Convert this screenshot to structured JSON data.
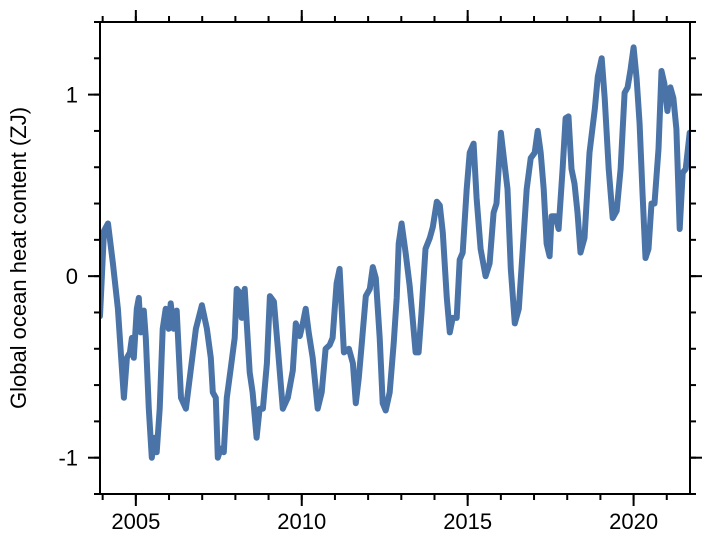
{
  "chart_data": {
    "type": "line",
    "ylabel": "Global ocean heat content (ZJ)",
    "xlim": [
      2003.92,
      2021.7
    ],
    "ylim": [
      -1.2,
      1.4
    ],
    "xticks": [
      2005,
      2010,
      2015,
      2020
    ],
    "xminorticks": [
      2004,
      2005,
      2006,
      2007,
      2008,
      2009,
      2010,
      2011,
      2012,
      2013,
      2014,
      2015,
      2016,
      2017,
      2018,
      2019,
      2020,
      2021
    ],
    "yticks": [
      -1,
      0,
      1
    ],
    "yminorticks": [
      -1.2,
      -1,
      -0.8,
      -0.6,
      -0.4,
      -0.2,
      0,
      0.2,
      0.4,
      0.6,
      0.8,
      1,
      1.2,
      1.4
    ],
    "series": [
      {
        "color": "#4a74a8",
        "x": [
          2003.92,
          2004.04,
          2004.16,
          2004.31,
          2004.46,
          2004.58,
          2004.64,
          2004.73,
          2004.82,
          2004.88,
          2004.94,
          2005.03,
          2005.09,
          2005.15,
          2005.24,
          2005.3,
          2005.39,
          2005.48,
          2005.57,
          2005.63,
          2005.72,
          2005.81,
          2005.9,
          2005.99,
          2006.05,
          2006.14,
          2006.23,
          2006.36,
          2006.51,
          2006.66,
          2006.81,
          2006.99,
          2007.14,
          2007.26,
          2007.32,
          2007.41,
          2007.47,
          2007.56,
          2007.65,
          2007.74,
          2007.86,
          2007.98,
          2008.04,
          2008.13,
          2008.19,
          2008.28,
          2008.43,
          2008.52,
          2008.64,
          2008.73,
          2008.83,
          2008.95,
          2009.04,
          2009.16,
          2009.28,
          2009.43,
          2009.58,
          2009.73,
          2009.82,
          2009.94,
          2010.03,
          2010.12,
          2010.21,
          2010.33,
          2010.48,
          2010.6,
          2010.72,
          2010.84,
          2010.93,
          2011.05,
          2011.14,
          2011.27,
          2011.42,
          2011.54,
          2011.63,
          2011.72,
          2011.81,
          2011.93,
          2012.05,
          2012.14,
          2012.23,
          2012.35,
          2012.44,
          2012.53,
          2012.65,
          2012.77,
          2012.86,
          2012.92,
          2013.01,
          2013.13,
          2013.25,
          2013.34,
          2013.43,
          2013.52,
          2013.61,
          2013.73,
          2013.86,
          2013.95,
          2014.07,
          2014.16,
          2014.25,
          2014.37,
          2014.46,
          2014.55,
          2014.67,
          2014.76,
          2014.85,
          2014.97,
          2015.06,
          2015.18,
          2015.27,
          2015.39,
          2015.54,
          2015.66,
          2015.78,
          2015.87,
          2016.0,
          2016.11,
          2016.2,
          2016.3,
          2016.42,
          2016.54,
          2016.66,
          2016.78,
          2016.9,
          2017.02,
          2017.11,
          2017.2,
          2017.29,
          2017.38,
          2017.47,
          2017.53,
          2017.65,
          2017.74,
          2017.86,
          2017.95,
          2018.04,
          2018.13,
          2018.22,
          2018.31,
          2018.4,
          2018.52,
          2018.67,
          2018.83,
          2018.92,
          2019.04,
          2019.13,
          2019.25,
          2019.37,
          2019.49,
          2019.61,
          2019.73,
          2019.82,
          2019.91,
          2020.0,
          2020.09,
          2020.18,
          2020.27,
          2020.36,
          2020.45,
          2020.54,
          2020.63,
          2020.75,
          2020.84,
          2020.93,
          2021.02,
          2021.11,
          2021.2,
          2021.29,
          2021.39,
          2021.48,
          2021.57,
          2021.69
        ],
        "values": [
          -0.22,
          0.25,
          0.29,
          0.07,
          -0.18,
          -0.51,
          -0.67,
          -0.45,
          -0.42,
          -0.34,
          -0.45,
          -0.18,
          -0.12,
          -0.31,
          -0.19,
          -0.34,
          -0.73,
          -1.0,
          -0.89,
          -0.97,
          -0.73,
          -0.29,
          -0.18,
          -0.29,
          -0.15,
          -0.29,
          -0.19,
          -0.67,
          -0.73,
          -0.51,
          -0.29,
          -0.16,
          -0.29,
          -0.45,
          -0.64,
          -0.67,
          -1.0,
          -0.95,
          -0.97,
          -0.67,
          -0.51,
          -0.34,
          -0.07,
          -0.09,
          -0.23,
          -0.07,
          -0.53,
          -0.64,
          -0.89,
          -0.73,
          -0.73,
          -0.48,
          -0.11,
          -0.14,
          -0.4,
          -0.73,
          -0.67,
          -0.52,
          -0.26,
          -0.33,
          -0.26,
          -0.18,
          -0.31,
          -0.45,
          -0.73,
          -0.64,
          -0.4,
          -0.38,
          -0.34,
          -0.04,
          0.04,
          -0.42,
          -0.4,
          -0.48,
          -0.7,
          -0.56,
          -0.37,
          -0.11,
          -0.07,
          0.05,
          -0.01,
          -0.34,
          -0.7,
          -0.74,
          -0.64,
          -0.37,
          -0.12,
          0.18,
          0.29,
          0.13,
          -0.05,
          -0.23,
          -0.42,
          -0.42,
          -0.2,
          0.15,
          0.21,
          0.27,
          0.41,
          0.39,
          0.24,
          -0.12,
          -0.31,
          -0.23,
          -0.23,
          0.09,
          0.13,
          0.48,
          0.68,
          0.73,
          0.43,
          0.15,
          0.0,
          0.07,
          0.35,
          0.4,
          0.79,
          0.62,
          0.48,
          0.04,
          -0.26,
          -0.18,
          0.15,
          0.48,
          0.65,
          0.68,
          0.8,
          0.68,
          0.48,
          0.18,
          0.11,
          0.33,
          0.33,
          0.26,
          0.59,
          0.87,
          0.88,
          0.59,
          0.51,
          0.35,
          0.13,
          0.21,
          0.68,
          0.92,
          1.1,
          1.2,
          0.98,
          0.59,
          0.32,
          0.36,
          0.59,
          1.01,
          1.04,
          1.14,
          1.26,
          1.09,
          0.84,
          0.46,
          0.1,
          0.15,
          0.4,
          0.4,
          0.7,
          1.13,
          1.06,
          0.91,
          1.04,
          0.98,
          0.81,
          0.26,
          0.57,
          0.59,
          0.79
        ]
      }
    ]
  }
}
